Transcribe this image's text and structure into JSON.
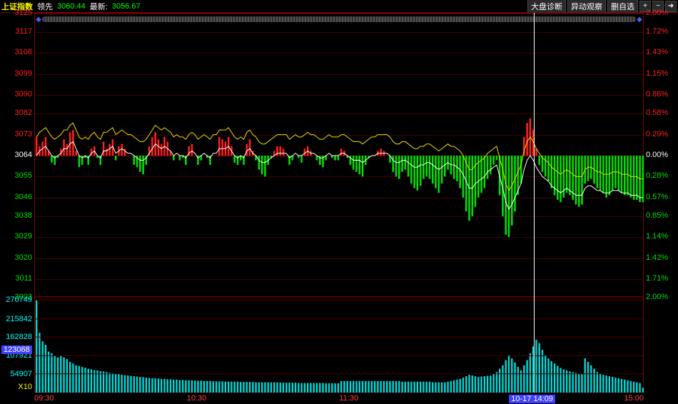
{
  "header": {
    "title": "上证指数",
    "lead_label": "领先",
    "lead_value": "3060.44",
    "latest_label": "最新:",
    "latest_value": "3056.67",
    "buttons": [
      "大盘诊断",
      "异动观察",
      "删自选"
    ],
    "icon_plus": "+",
    "icon_minus": "−",
    "icon_arrow": "➜"
  },
  "colors": {
    "up": "#ff2020",
    "down": "#00e000",
    "axis_red": "#ff2020",
    "axis_green": "#00e000",
    "volume": "#00dddd",
    "yellow_line": "#f0e000",
    "white_line": "#ffffff",
    "grid": "#500000",
    "grid_base": "#a00000",
    "bg": "#000000",
    "time": "#ff4040",
    "cursor": "#4040ff",
    "title": "#ffff00",
    "label": "#ffffff"
  },
  "price_chart": {
    "ylim": [
      3003,
      3125
    ],
    "baseline": 3064,
    "left_ticks": [
      3125,
      3117,
      3108,
      3099,
      3090,
      3082,
      3073,
      3064,
      3055,
      3046,
      3038,
      3029,
      3020,
      3011,
      3003
    ],
    "right_ticks": [
      "2.00%",
      "1.72%",
      "1.43%",
      "1.15%",
      "0.86%",
      "0.58%",
      "0.29%",
      "0.00%",
      "0.28%",
      "0.57%",
      "0.85%",
      "1.14%",
      "1.42%",
      "1.71%",
      "2.00%"
    ],
    "bars": [
      3072,
      3068,
      3070,
      3072,
      3066,
      3061,
      3060,
      3063,
      3067,
      3071,
      3069,
      3074,
      3075,
      3066,
      3059,
      3060,
      3063,
      3060,
      3067,
      3068,
      3063,
      3060,
      3070,
      3067,
      3069,
      3071,
      3062,
      3068,
      3069,
      3067,
      3064,
      3064,
      3060,
      3059,
      3057,
      3056,
      3060,
      3068,
      3072,
      3074,
      3071,
      3069,
      3072,
      3070,
      3066,
      3062,
      3064,
      3062,
      3063,
      3060,
      3068,
      3069,
      3064,
      3060,
      3062,
      3064,
      3063,
      3060,
      3064,
      3064,
      3072,
      3071,
      3070,
      3072,
      3068,
      3061,
      3060,
      3062,
      3060,
      3069,
      3071,
      3066,
      3062,
      3058,
      3056,
      3055,
      3060,
      3063,
      3066,
      3068,
      3068,
      3067,
      3064,
      3060,
      3062,
      3064,
      3063,
      3061,
      3067,
      3068,
      3066,
      3064,
      3062,
      3060,
      3059,
      3062,
      3064,
      3063,
      3062,
      3062,
      3067,
      3066,
      3063,
      3060,
      3058,
      3057,
      3056,
      3055,
      3060,
      3063,
      3064,
      3064,
      3066,
      3067,
      3066,
      3064,
      3061,
      3057,
      3055,
      3054,
      3057,
      3058,
      3055,
      3052,
      3050,
      3049,
      3051,
      3054,
      3055,
      3054,
      3052,
      3050,
      3048,
      3052,
      3055,
      3058,
      3056,
      3054,
      3053,
      3050,
      3046,
      3040,
      3036,
      3038,
      3042,
      3046,
      3048,
      3050,
      3054,
      3056,
      3060,
      3062,
      3047,
      3038,
      3030,
      3029,
      3034,
      3040,
      3047,
      3052,
      3072,
      3078,
      3080,
      3075,
      3067,
      3060,
      3057,
      3055,
      3053,
      3050,
      3047,
      3045,
      3044,
      3046,
      3048,
      3047,
      3045,
      3043,
      3042,
      3043,
      3052,
      3053,
      3054,
      3052,
      3050,
      3049,
      3048,
      3046,
      3047,
      3049,
      3050,
      3049,
      3048,
      3047,
      3047,
      3046,
      3045,
      3045,
      3044,
      3044
    ],
    "yellow_line_offset": 8,
    "white_line": [
      3064,
      3066,
      3067,
      3068,
      3066,
      3064,
      3063,
      3064,
      3065,
      3067,
      3067,
      3069,
      3070,
      3067,
      3064,
      3063,
      3064,
      3063,
      3065,
      3066,
      3064,
      3063,
      3066,
      3066,
      3067,
      3068,
      3065,
      3066,
      3067,
      3066,
      3065,
      3065,
      3064,
      3063,
      3062,
      3062,
      3063,
      3065,
      3067,
      3069,
      3068,
      3067,
      3068,
      3067,
      3066,
      3064,
      3065,
      3064,
      3064,
      3063,
      3065,
      3066,
      3065,
      3063,
      3064,
      3065,
      3064,
      3063,
      3065,
      3065,
      3067,
      3067,
      3067,
      3068,
      3066,
      3064,
      3063,
      3064,
      3063,
      3066,
      3067,
      3065,
      3064,
      3062,
      3061,
      3061,
      3062,
      3063,
      3064,
      3065,
      3065,
      3065,
      3065,
      3063,
      3064,
      3065,
      3064,
      3064,
      3065,
      3066,
      3065,
      3065,
      3064,
      3063,
      3063,
      3064,
      3065,
      3064,
      3064,
      3064,
      3065,
      3065,
      3064,
      3063,
      3062,
      3062,
      3062,
      3061,
      3062,
      3063,
      3064,
      3064,
      3065,
      3065,
      3065,
      3065,
      3064,
      3062,
      3061,
      3061,
      3062,
      3062,
      3061,
      3060,
      3059,
      3059,
      3060,
      3060,
      3061,
      3061,
      3060,
      3059,
      3058,
      3059,
      3060,
      3061,
      3060,
      3060,
      3059,
      3058,
      3056,
      3053,
      3050,
      3050,
      3052,
      3053,
      3054,
      3055,
      3057,
      3058,
      3059,
      3060,
      3055,
      3050,
      3044,
      3041,
      3043,
      3046,
      3049,
      3052,
      3058,
      3062,
      3064,
      3062,
      3059,
      3057,
      3055,
      3054,
      3053,
      3051,
      3050,
      3049,
      3048,
      3049,
      3050,
      3049,
      3048,
      3047,
      3047,
      3047,
      3050,
      3051,
      3051,
      3050,
      3049,
      3049,
      3048,
      3048,
      3048,
      3049,
      3049,
      3049,
      3048,
      3048,
      3048,
      3047,
      3047,
      3047,
      3046,
      3046
    ]
  },
  "volume_chart": {
    "ymax": 280000,
    "ticks": [
      270749,
      215842,
      162828,
      107921,
      54907
    ],
    "scale_label": "X10",
    "cursor_value": "123068",
    "bars": [
      270000,
      175000,
      150000,
      140000,
      120000,
      115000,
      108000,
      103000,
      108000,
      103000,
      98000,
      90000,
      85000,
      80000,
      78000,
      75000,
      73000,
      70000,
      68000,
      66000,
      65000,
      63000,
      62000,
      60000,
      58000,
      57000,
      55000,
      54000,
      52000,
      51000,
      50000,
      49000,
      48000,
      47000,
      46000,
      45000,
      44000,
      43000,
      42000,
      42000,
      41000,
      40000,
      40000,
      39000,
      39000,
      38000,
      38000,
      37000,
      37000,
      36000,
      36000,
      36000,
      35000,
      35000,
      35000,
      34000,
      34000,
      34000,
      33000,
      33000,
      33000,
      33000,
      32000,
      32000,
      32000,
      32000,
      32000,
      31000,
      31000,
      31000,
      31000,
      31000,
      30000,
      30000,
      30000,
      30000,
      30000,
      30000,
      30000,
      30000,
      29000,
      29000,
      29000,
      29000,
      29000,
      29000,
      28000,
      28000,
      28000,
      28000,
      28000,
      28000,
      28000,
      28000,
      28000,
      27000,
      27000,
      27000,
      27000,
      27000,
      34000,
      34000,
      34000,
      34000,
      34000,
      34000,
      34000,
      34000,
      34000,
      34000,
      34000,
      34000,
      34000,
      34000,
      34000,
      34000,
      34000,
      34000,
      34000,
      34000,
      32000,
      32000,
      32000,
      32000,
      32000,
      32000,
      32000,
      32000,
      32000,
      32000,
      30000,
      30000,
      30000,
      30000,
      30000,
      32000,
      34000,
      36000,
      38000,
      40000,
      44000,
      48000,
      52000,
      50000,
      48000,
      46000,
      47000,
      48000,
      49000,
      50000,
      55000,
      60000,
      70000,
      80000,
      95000,
      110000,
      100000,
      88000,
      75000,
      65000,
      80000,
      95000,
      115000,
      135000,
      155000,
      145000,
      125000,
      110000,
      100000,
      92000,
      85000,
      78000,
      72000,
      68000,
      65000,
      62000,
      60000,
      58000,
      56000,
      55000,
      100000,
      90000,
      80000,
      70000,
      60000,
      55000,
      52000,
      50000,
      48000,
      46000,
      44000,
      42000,
      40000,
      38000,
      36000,
      34000,
      32000,
      30000,
      28000,
      14000
    ]
  },
  "time_axis": {
    "labels": [
      "09:30",
      "10:30",
      "11:30",
      "",
      "15:00"
    ],
    "cursor_label": "10-17 14:09",
    "cursor_position": 0.82
  }
}
